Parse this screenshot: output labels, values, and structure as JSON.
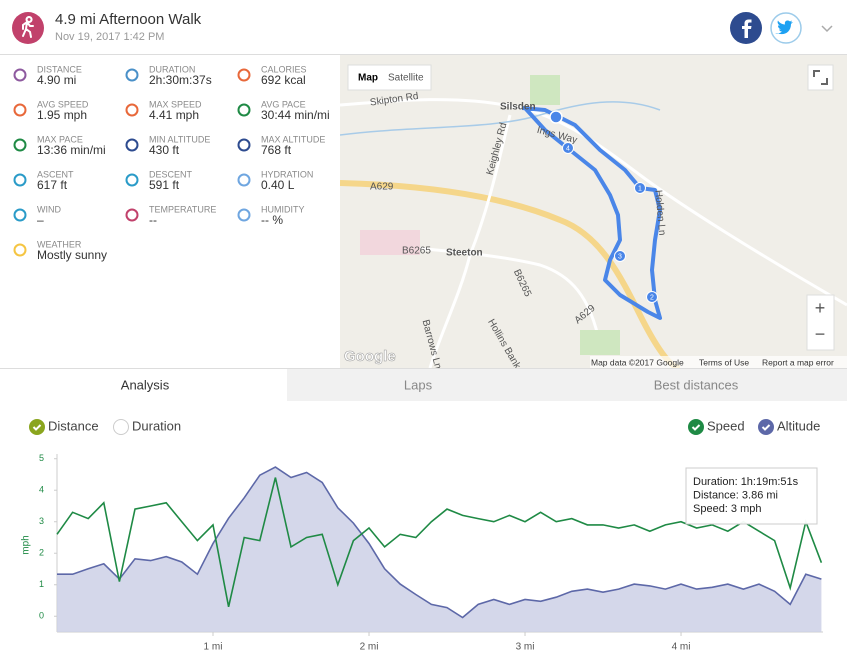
{
  "header": {
    "title": "4.9 mi Afternoon Walk",
    "date": "Nov 19, 2017 1:42 PM"
  },
  "stats": [
    {
      "label": "DISTANCE",
      "value": "4.90 mi"
    },
    {
      "label": "DURATION",
      "value": "2h:30m:37s"
    },
    {
      "label": "CALORIES",
      "value": "692 kcal"
    },
    {
      "label": "AVG SPEED",
      "value": "1.95 mph"
    },
    {
      "label": "MAX SPEED",
      "value": "4.41 mph"
    },
    {
      "label": "AVG PACE",
      "value": "30:44 min/mi"
    },
    {
      "label": "MAX PACE",
      "value": "13:36 min/mi"
    },
    {
      "label": "MIN ALTITUDE",
      "value": "430 ft"
    },
    {
      "label": "MAX ALTITUDE",
      "value": "768 ft"
    },
    {
      "label": "ASCENT",
      "value": "617 ft"
    },
    {
      "label": "DESCENT",
      "value": "591 ft"
    },
    {
      "label": "HYDRATION",
      "value": "0.40 L"
    },
    {
      "label": "WIND",
      "value": "–"
    },
    {
      "label": "TEMPERATURE",
      "value": "--"
    },
    {
      "label": "HUMIDITY",
      "value": "-- %"
    },
    {
      "label": "WEATHER",
      "value": "Mostly sunny"
    }
  ],
  "map": {
    "controls": [
      "Map",
      "Satellite"
    ],
    "zoom": [
      "+",
      "−"
    ],
    "labels": [
      "Silsden",
      "Steeton",
      "A629",
      "A629",
      "Keighley Rd",
      "B6265",
      "B6265",
      "Skipton Rd",
      "Holden Ln",
      "Hollins Bank Ln",
      "Barrows Ln",
      "Ings Way"
    ],
    "markers": [
      "1",
      "2",
      "3",
      "4"
    ],
    "logo": "Google",
    "attribution": [
      "Map data ©2017 Google",
      "Terms of Use",
      "Report a map error"
    ]
  },
  "tabs": [
    "Analysis",
    "Laps",
    "Best distances"
  ],
  "chart_data": {
    "type": "line",
    "x_options": [
      {
        "label": "Distance",
        "checked": true,
        "color": "#8aa51e"
      },
      {
        "label": "Duration",
        "checked": false,
        "color": "#cccccc"
      }
    ],
    "y_label": "mph",
    "x": [
      0,
      0.1,
      0.2,
      0.3,
      0.4,
      0.5,
      0.6,
      0.7,
      0.8,
      0.9,
      1.0,
      1.1,
      1.2,
      1.3,
      1.4,
      1.5,
      1.6,
      1.7,
      1.8,
      1.9,
      2.0,
      2.1,
      2.2,
      2.3,
      2.4,
      2.5,
      2.6,
      2.7,
      2.8,
      2.9,
      3.0,
      3.1,
      3.2,
      3.3,
      3.4,
      3.5,
      3.6,
      3.7,
      3.8,
      3.9,
      4.0,
      4.1,
      4.2,
      4.3,
      4.4,
      4.5,
      4.6,
      4.7,
      4.8,
      4.9
    ],
    "series": [
      {
        "name": "Speed",
        "color": "#1f8a45",
        "checked": true,
        "values": [
          2.6,
          3.3,
          3.1,
          3.6,
          1.1,
          3.4,
          3.5,
          3.6,
          3.0,
          2.4,
          2.9,
          0.3,
          2.5,
          2.4,
          4.4,
          2.2,
          2.5,
          2.6,
          1.0,
          2.4,
          2.8,
          2.2,
          2.6,
          2.5,
          3.0,
          3.4,
          3.2,
          3.1,
          3.0,
          3.2,
          3.0,
          3.3,
          3.0,
          3.1,
          2.9,
          2.9,
          2.8,
          2.9,
          2.7,
          2.9,
          3.0,
          2.8,
          2.9,
          2.7,
          3.0,
          2.7,
          2.4,
          0.9,
          3.0,
          1.7
        ]
      },
      {
        "name": "Altitude",
        "color": "#5d68a8",
        "checked": true,
        "axis": "y2",
        "values": [
          531,
          531,
          543,
          554,
          520,
          565,
          561,
          570,
          558,
          531,
          599,
          655,
          700,
          750,
          768,
          745,
          756,
          734,
          678,
          644,
          599,
          543,
          509,
          486,
          464,
          457,
          435,
          464,
          475,
          464,
          475,
          471,
          480,
          493,
          498,
          491,
          498,
          509,
          505,
          498,
          509,
          498,
          502,
          509,
          498,
          509,
          493,
          464,
          531,
          520
        ]
      }
    ],
    "xlim": [
      0,
      4.91
    ],
    "xticks": [
      {
        "value": 1,
        "label": "1 mi"
      },
      {
        "value": 2,
        "label": "2 mi"
      },
      {
        "value": 3,
        "label": "3 mi"
      },
      {
        "value": 4,
        "label": "4 mi"
      }
    ],
    "ylim": [
      -0.5,
      5.15
    ],
    "yticks": [
      0,
      1,
      2,
      3,
      4,
      5
    ],
    "y2lim": [
      403,
      797
    ],
    "grid": false,
    "tooltip": [
      "Duration: 1h:19m:51s",
      "Distance: 3.86 mi",
      "Speed: 3 mph"
    ]
  }
}
